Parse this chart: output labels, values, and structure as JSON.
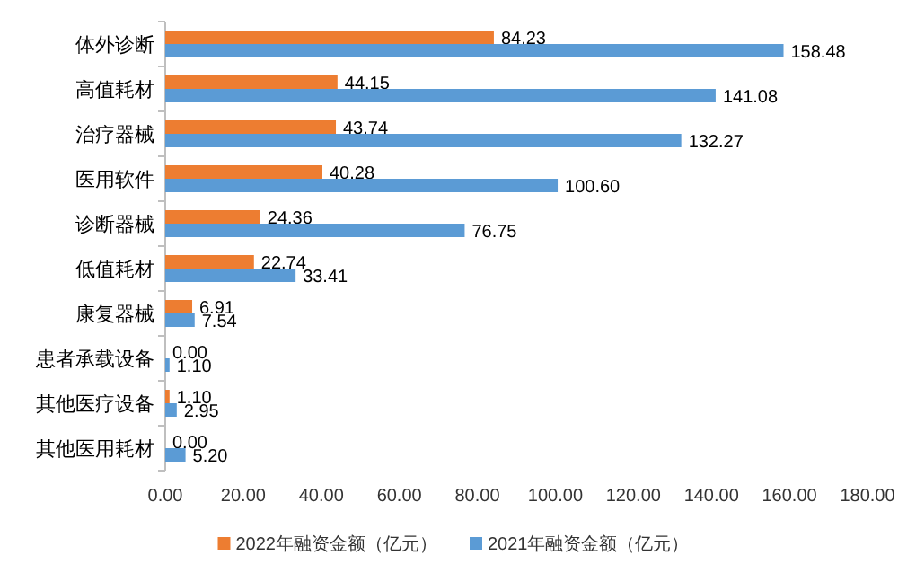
{
  "chart_data": {
    "type": "bar",
    "orientation": "horizontal",
    "legend": "bottom",
    "grid": false,
    "categories": [
      "体外诊断",
      "高值耗材",
      "治疗器械",
      "医用软件",
      "诊断器械",
      "低值耗材",
      "康复器械",
      "患者承载设备",
      "其他医疗设备",
      "其他医用耗材"
    ],
    "series": [
      {
        "name": "2022年融资金额（亿元）",
        "color": "#ed7d31",
        "values": [
          84.23,
          44.15,
          43.74,
          40.28,
          24.36,
          22.74,
          6.91,
          0,
          1.1,
          0
        ],
        "value_labels": [
          "84.23",
          "44.15",
          "43.74",
          "40.28",
          "24.36",
          "22.74",
          "6.91",
          "0.00",
          "1.10",
          "0.00"
        ]
      },
      {
        "name": "2021年融资金额（亿元）",
        "color": "#5b9bd5",
        "values": [
          158.48,
          141.08,
          132.27,
          100.6,
          76.75,
          33.41,
          7.54,
          1.1,
          2.95,
          5.2
        ],
        "value_labels": [
          "158.48",
          "141.08",
          "132.27",
          "100.60",
          "76.75",
          "33.41",
          "7.54",
          "1.10",
          "2.95",
          "5.20"
        ]
      }
    ],
    "xlim": [
      0,
      180
    ],
    "xticks": [
      {
        "value": 0,
        "label": "0.00"
      },
      {
        "value": 20,
        "label": "20.00"
      },
      {
        "value": 40,
        "label": "40.00"
      },
      {
        "value": 60,
        "label": "60.00"
      },
      {
        "value": 80,
        "label": "80.00"
      },
      {
        "value": 100,
        "label": "100.00"
      },
      {
        "value": 120,
        "label": "120.00"
      },
      {
        "value": 140,
        "label": "140.00"
      },
      {
        "value": 160,
        "label": "160.00"
      },
      {
        "value": 180,
        "label": "180.00"
      }
    ]
  }
}
